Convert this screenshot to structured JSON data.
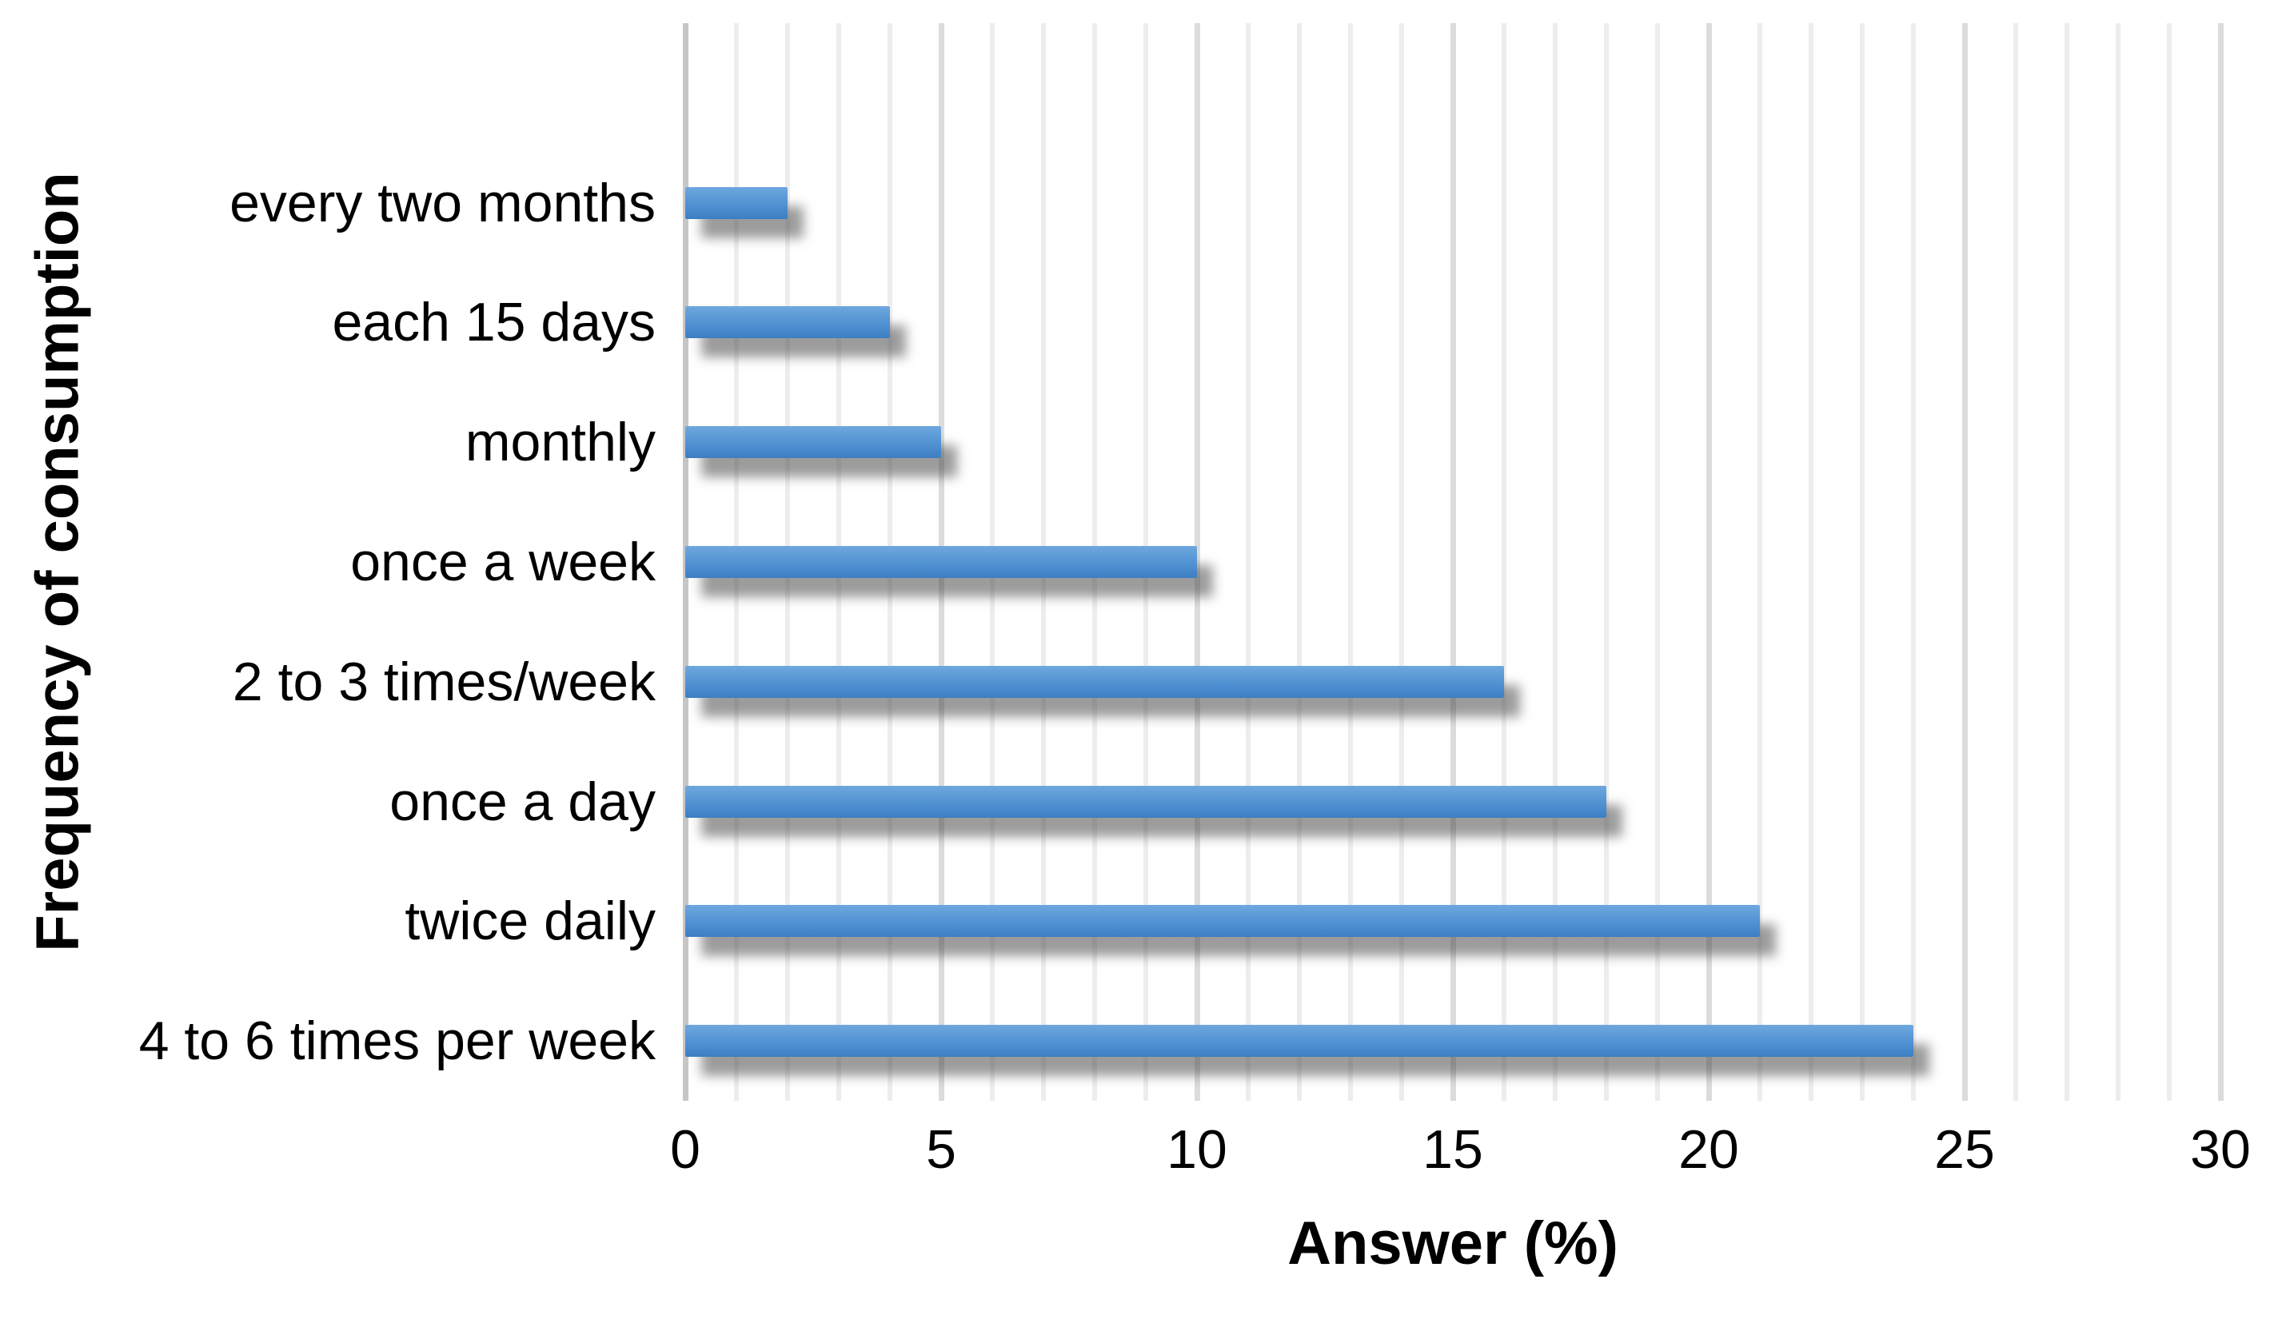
{
  "chart_data": {
    "type": "bar",
    "orientation": "horizontal",
    "title": "",
    "xlabel": "Answer (%)",
    "ylabel": "Frequency of consumption",
    "categories": [
      "every two months",
      "each 15 days",
      "monthly",
      "once a week",
      "2 to 3 times/week",
      "once a day",
      "twice daily",
      "4 to 6 times per week"
    ],
    "values": [
      2,
      4,
      5,
      10,
      16,
      18,
      21,
      24
    ],
    "xlim": [
      0,
      30
    ],
    "xticks": [
      0,
      5,
      10,
      15,
      20,
      25,
      30
    ],
    "minor_grid_step": 1,
    "major_grid_step": 5,
    "grid": true,
    "legend": false,
    "empty_top_band": true,
    "colors": {
      "bar_top": "#6fa8de",
      "bar_mid": "#5092d2",
      "bar_bottom": "#3c7ec3",
      "bar_shadow": "rgba(75,75,75,0.55)",
      "grid_minor": "#ededed",
      "grid_major": "#dcdcdc",
      "axis_line": "#c6c6c6",
      "text": "#000000",
      "background": "#ffffff"
    }
  }
}
